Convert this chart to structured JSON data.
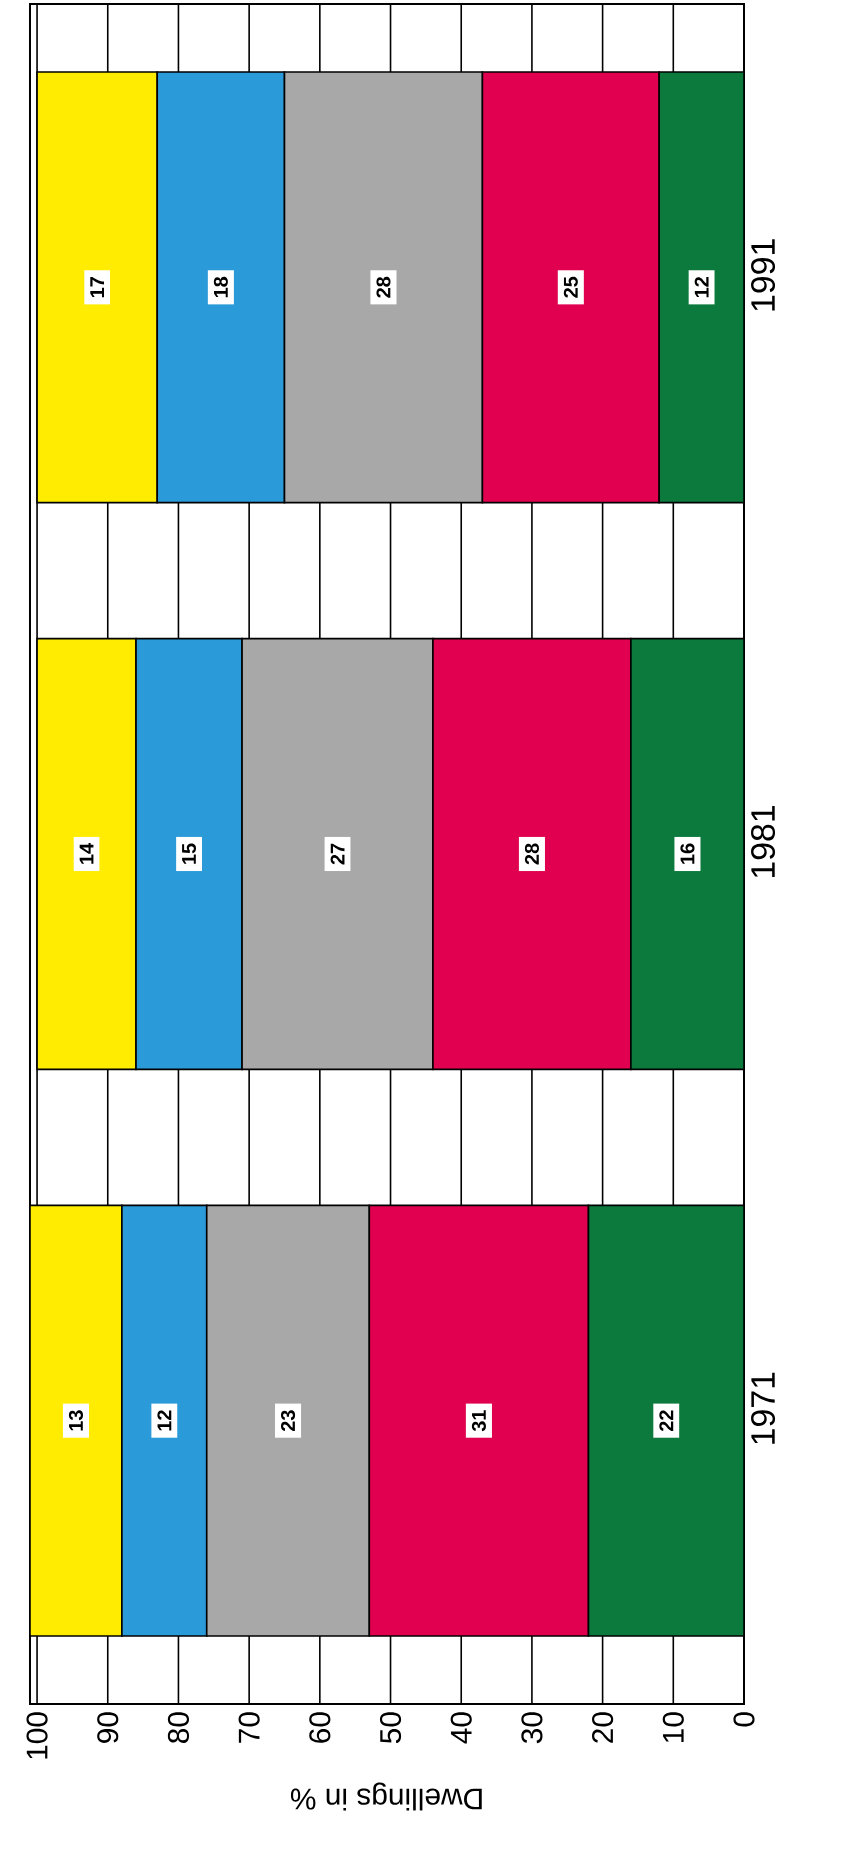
{
  "chart_data": {
    "type": "bar",
    "orientation": "horizontal",
    "stacked": true,
    "xlabel": "Dwellings in %",
    "categories": [
      "1991",
      "1981",
      "1971"
    ],
    "series": [
      {
        "color": "#0b7a3c",
        "values": [
          12,
          16,
          22
        ]
      },
      {
        "color": "#e0004f",
        "values": [
          25,
          28,
          31
        ]
      },
      {
        "color": "#a8a8a8",
        "values": [
          28,
          27,
          23
        ]
      },
      {
        "color": "#2a9ad8",
        "values": [
          18,
          15,
          12
        ]
      },
      {
        "color": "#ffec00",
        "values": [
          17,
          14,
          13
        ]
      }
    ],
    "xlim": [
      101,
      0
    ],
    "xticks": [
      0,
      10,
      20,
      30,
      40,
      50,
      60,
      70,
      80,
      90,
      100
    ],
    "grid": "x",
    "data_labels": true
  }
}
